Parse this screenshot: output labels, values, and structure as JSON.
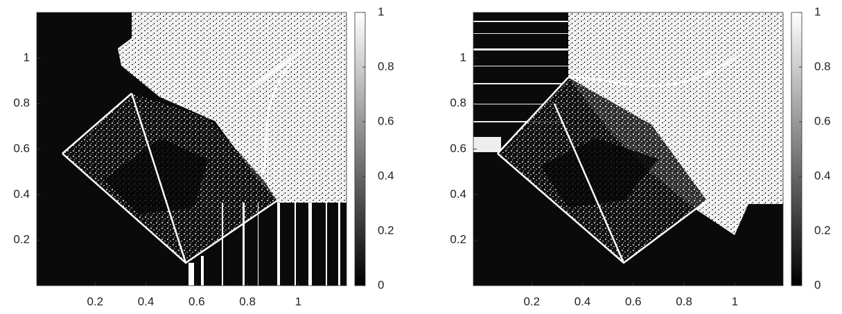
{
  "chart_data": [
    {
      "type": "image",
      "colormap": "gray",
      "xlim": [
        -0.03,
        1.19
      ],
      "ylim": [
        0,
        1.2
      ],
      "xticks": [
        0.2,
        0.4,
        0.6,
        0.8,
        1
      ],
      "yticks": [
        0.2,
        0.4,
        0.6,
        0.8,
        1
      ],
      "clim": [
        0,
        1
      ],
      "cticks": [
        0,
        0.2,
        0.4,
        0.6,
        0.8,
        1
      ]
    },
    {
      "type": "image",
      "colormap": "gray",
      "xlim": [
        -0.03,
        1.19
      ],
      "ylim": [
        0,
        1.2
      ],
      "xticks": [
        0.2,
        0.4,
        0.6,
        0.8,
        1
      ],
      "yticks": [
        0.2,
        0.4,
        0.6,
        0.8,
        1
      ],
      "clim": [
        0,
        1
      ],
      "cticks": [
        0,
        0.2,
        0.4,
        0.6,
        0.8,
        1
      ]
    }
  ]
}
